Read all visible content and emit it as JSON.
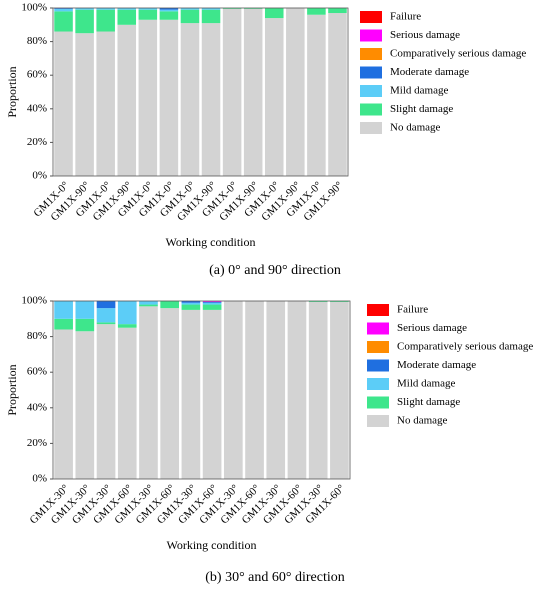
{
  "chart_data": [
    {
      "type": "bar",
      "stacked": true,
      "legend": "upper right",
      "x_label": "Working condition",
      "y_label": "Proportion",
      "caption": "(a) 0° and 90° direction",
      "categories": [
        "GM1X-0°",
        "GM1X-90°",
        "GM1X-0°",
        "GM1X-90°",
        "GM1X-0°",
        "GM1X-0°",
        "GM1X-0°",
        "GM1X-90°",
        "GM1X-0°",
        "GM1X-90°",
        "GM1X-0°",
        "GM1X-90°",
        "GM1X-0°",
        "GM1X-90°"
      ],
      "ylim": [
        0,
        100
      ],
      "yticks": [
        {
          "value": 0,
          "label": "0%"
        },
        {
          "value": 20,
          "label": "20%"
        },
        {
          "value": 40,
          "label": "40%"
        },
        {
          "value": 60,
          "label": "60%"
        },
        {
          "value": 80,
          "label": "80%"
        },
        {
          "value": 100,
          "label": "100%"
        }
      ],
      "series": [
        {
          "name": "No damage",
          "color": "#d3d3d3",
          "values": [
            86,
            85,
            86,
            90,
            93,
            93,
            91,
            91,
            99.5,
            99.5,
            94,
            100,
            96,
            97
          ]
        },
        {
          "name": "Slight damage",
          "color": "#3ee68c",
          "values": [
            12,
            14,
            13,
            9,
            6,
            5,
            8,
            8,
            0.5,
            0.5,
            6,
            0,
            4,
            3
          ]
        },
        {
          "name": "Mild damage",
          "color": "#5ccdf7",
          "values": [
            1.5,
            1,
            1,
            1,
            1,
            1,
            1,
            1,
            0,
            0,
            0,
            0,
            0,
            0
          ]
        },
        {
          "name": "Moderate damage",
          "color": "#1f6fe0",
          "values": [
            0.5,
            0,
            0,
            0,
            0,
            1,
            0,
            0,
            0,
            0,
            0,
            0,
            0,
            0
          ]
        },
        {
          "name": "Comparatively serious damage",
          "color": "#ff8c00",
          "values": [
            0,
            0,
            0,
            0,
            0,
            0,
            0,
            0,
            0,
            0,
            0,
            0,
            0,
            0
          ]
        },
        {
          "name": "Serious damage",
          "color": "#ff00ff",
          "values": [
            0,
            0,
            0,
            0,
            0,
            0,
            0,
            0,
            0,
            0,
            0,
            0,
            0,
            0
          ]
        },
        {
          "name": "Failure",
          "color": "#ff0000",
          "values": [
            0,
            0,
            0,
            0,
            0,
            0,
            0,
            0,
            0,
            0,
            0,
            0,
            0,
            0
          ]
        }
      ]
    },
    {
      "type": "bar",
      "stacked": true,
      "legend": "upper right",
      "x_label": "Working condition",
      "y_label": "Proportion",
      "caption": "(b) 30° and 60° direction",
      "categories": [
        "GM1X-30°",
        "GM1X-30°",
        "GM1X-30°",
        "GM1X-60°",
        "GM1X-30°",
        "GM1X-60°",
        "GM1X-30°",
        "GM1X-60°",
        "GM1X-30°",
        "GM1X-60°",
        "GM1X-30°",
        "GM1X-60°",
        "GM1X-30°",
        "GM1X-60°"
      ],
      "ylim": [
        0,
        100
      ],
      "yticks": [
        {
          "value": 0,
          "label": "0%"
        },
        {
          "value": 20,
          "label": "20%"
        },
        {
          "value": 40,
          "label": "40%"
        },
        {
          "value": 60,
          "label": "60%"
        },
        {
          "value": 80,
          "label": "80%"
        },
        {
          "value": 100,
          "label": "100%"
        }
      ],
      "series": [
        {
          "name": "No damage",
          "color": "#d3d3d3",
          "values": [
            84,
            83,
            87,
            85,
            97,
            96,
            95,
            95,
            100,
            100,
            100,
            100,
            99.5,
            99.5
          ]
        },
        {
          "name": "Slight damage",
          "color": "#3ee68c",
          "values": [
            6,
            7,
            1,
            2,
            1,
            4,
            3,
            3,
            0,
            0,
            0,
            0,
            0.5,
            0.5
          ]
        },
        {
          "name": "Mild damage",
          "color": "#5ccdf7",
          "values": [
            10,
            10,
            8,
            13,
            2,
            0,
            1,
            1,
            0,
            0,
            0,
            0,
            0,
            0
          ]
        },
        {
          "name": "Moderate damage",
          "color": "#1f6fe0",
          "values": [
            0,
            0,
            4,
            0,
            0,
            0,
            1,
            0.5,
            0,
            0,
            0,
            0,
            0,
            0
          ]
        },
        {
          "name": "Comparatively serious damage",
          "color": "#ff8c00",
          "values": [
            0,
            0,
            0,
            0,
            0,
            0,
            0,
            0,
            0,
            0,
            0,
            0,
            0,
            0
          ]
        },
        {
          "name": "Serious damage",
          "color": "#ff00ff",
          "values": [
            0,
            0,
            0,
            0,
            0,
            0,
            0,
            0.5,
            0,
            0,
            0,
            0,
            0,
            0
          ]
        },
        {
          "name": "Failure",
          "color": "#ff0000",
          "values": [
            0,
            0,
            0,
            0,
            0,
            0,
            0,
            0,
            0,
            0,
            0,
            0,
            0,
            0
          ]
        }
      ]
    }
  ]
}
